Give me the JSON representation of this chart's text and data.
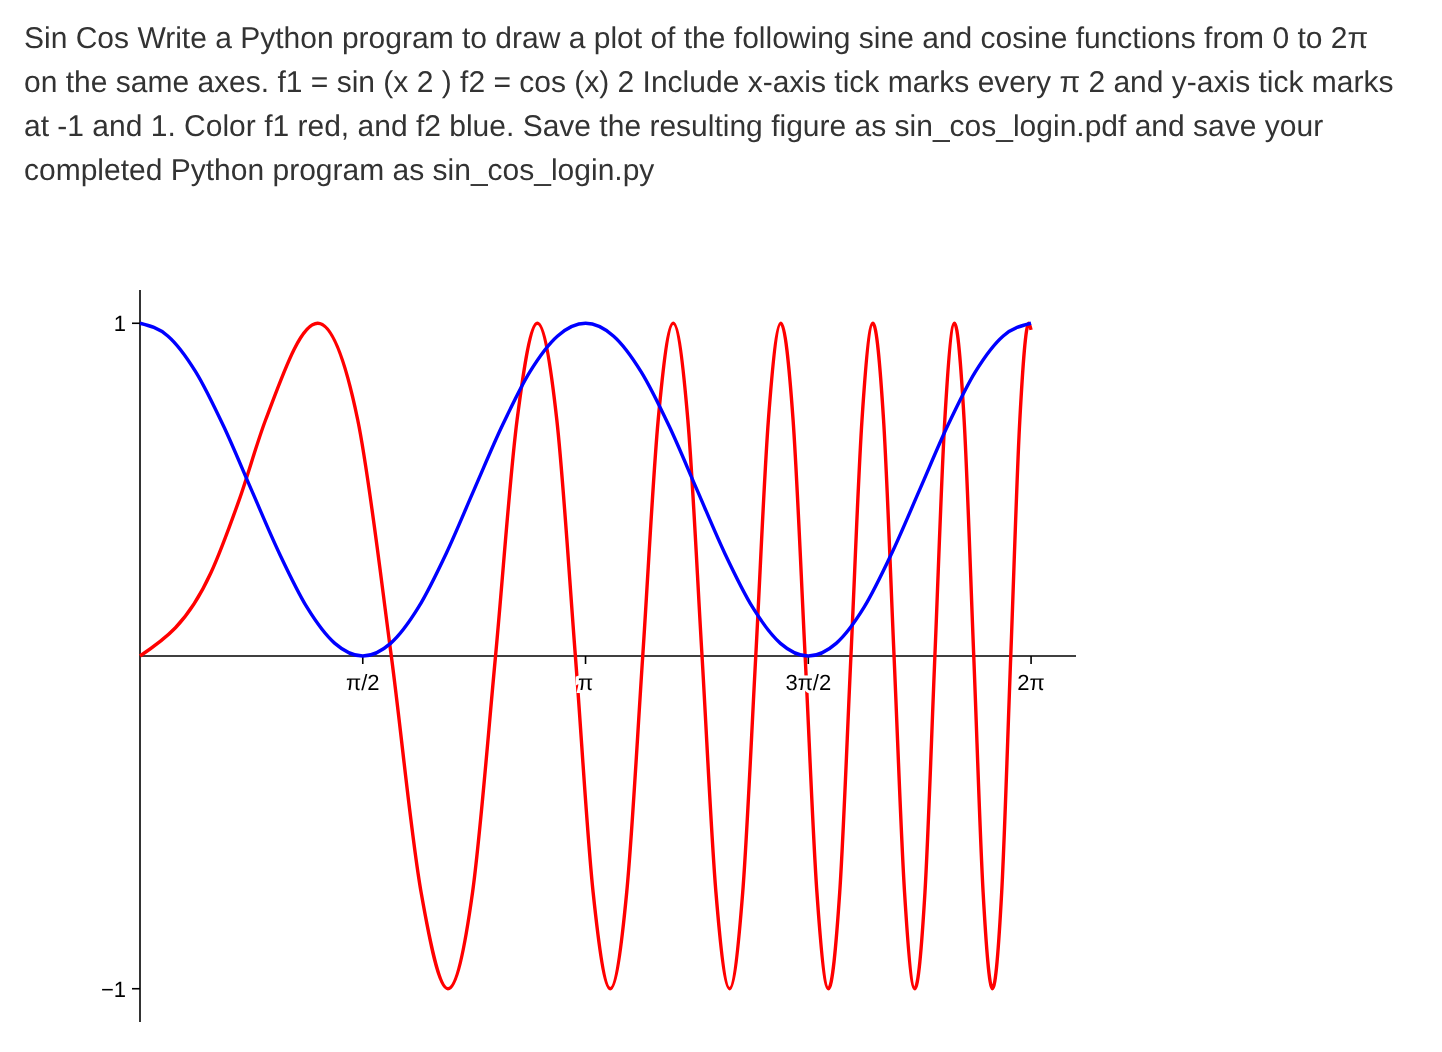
{
  "chart_data": {
    "type": "line",
    "title": "Sin Cos Write a Python program to draw a plot of the following sine and cosine functions from 0 to 2π on the same axes. f1 = sin (x 2 ) f2 = cos (x) 2 Include x-axis tick marks every π 2 and y-axis tick marks at -1 and 1. Color f1 red, and f2 blue. Save the resulting figure as sin_cos_login.pdf and save your completed Python program as sin_cos_login.py",
    "xlim": [
      0,
      6.6
    ],
    "ylim": [
      -1.1,
      1.1
    ],
    "xticks": [
      {
        "value": 1.5708,
        "label": "π/2"
      },
      {
        "value": 3.1416,
        "label": "π"
      },
      {
        "value": 4.7124,
        "label": "3π/2"
      },
      {
        "value": 6.2832,
        "label": "2π"
      }
    ],
    "yticks": [
      {
        "value": -1,
        "label": "−1"
      },
      1
    ],
    "marker": "none",
    "line_style": "solid",
    "series": [
      {
        "color": "#ff0000",
        "x": [
          0,
          0.5,
          0.7,
          0.886,
          1.253,
          1.535,
          1.772,
          1.982,
          2.171,
          2.345,
          2.507,
          2.659,
          2.802,
          2.939,
          3.07,
          3.195,
          3.316,
          3.432,
          3.545,
          3.654,
          3.76,
          3.863,
          3.963,
          4.061,
          4.157,
          4.25,
          4.342,
          4.431,
          4.519,
          4.605,
          4.69,
          4.773,
          4.854,
          4.934,
          5.013,
          5.091,
          5.168,
          5.243,
          5.317,
          5.391,
          5.463,
          5.535,
          5.605,
          5.675,
          5.743,
          5.811,
          5.879,
          5.945,
          6.011,
          6.076,
          6.14,
          6.204,
          6.267,
          6.283
        ],
        "values": [
          0,
          0.25,
          0.47,
          0.71,
          1,
          0.71,
          0,
          -0.71,
          -1,
          -0.71,
          0,
          0.71,
          1,
          0.71,
          0,
          -0.71,
          -1,
          -0.71,
          0,
          0.71,
          1,
          0.71,
          0,
          -0.71,
          -1,
          -0.71,
          0,
          0.71,
          1,
          0.71,
          0,
          -0.71,
          -1,
          -0.71,
          0,
          0.71,
          1,
          0.71,
          0,
          -0.71,
          -1,
          -0.71,
          0,
          0.71,
          1,
          0.71,
          0,
          -0.71,
          -1,
          -0.71,
          0,
          0.71,
          1,
          0.98
        ]
      },
      {
        "color": "#0000ff",
        "x": [
          0,
          0.196,
          0.393,
          0.589,
          0.785,
          0.982,
          1.178,
          1.374,
          1.571,
          1.767,
          1.963,
          2.16,
          2.356,
          2.553,
          2.749,
          2.945,
          3.142,
          3.338,
          3.534,
          3.731,
          3.927,
          4.123,
          4.32,
          4.516,
          4.712,
          4.909,
          5.105,
          5.301,
          5.498,
          5.694,
          5.89,
          6.087,
          6.283
        ],
        "values": [
          1,
          0.962,
          0.854,
          0.691,
          0.5,
          0.309,
          0.146,
          0.038,
          0,
          0.038,
          0.146,
          0.309,
          0.5,
          0.691,
          0.854,
          0.962,
          1,
          0.962,
          0.854,
          0.691,
          0.5,
          0.309,
          0.146,
          0.038,
          0,
          0.038,
          0.146,
          0.309,
          0.5,
          0.691,
          0.854,
          0.962,
          1
        ]
      }
    ]
  }
}
